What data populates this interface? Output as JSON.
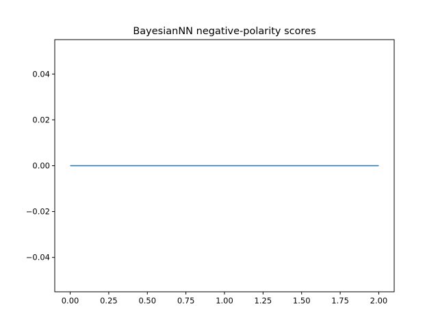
{
  "chart_data": {
    "type": "line",
    "title": "BayesianNN negative-polarity scores",
    "xlabel": "",
    "ylabel": "",
    "xlim": [
      -0.1,
      2.1
    ],
    "ylim": [
      -0.055,
      0.055
    ],
    "x_ticks": [
      0.0,
      0.25,
      0.5,
      0.75,
      1.0,
      1.25,
      1.5,
      1.75,
      2.0
    ],
    "x_tick_labels": [
      "0.00",
      "0.25",
      "0.50",
      "0.75",
      "1.00",
      "1.25",
      "1.50",
      "1.75",
      "2.00"
    ],
    "y_ticks": [
      -0.04,
      -0.02,
      0.0,
      0.02,
      0.04
    ],
    "y_tick_labels": [
      "−0.04",
      "−0.02",
      "0.00",
      "0.02",
      "0.04"
    ],
    "grid": false,
    "series": [
      {
        "color": "#1f77b4",
        "x": [
          0,
          1,
          2
        ],
        "y": [
          0.0,
          0.0,
          0.0
        ]
      }
    ]
  }
}
